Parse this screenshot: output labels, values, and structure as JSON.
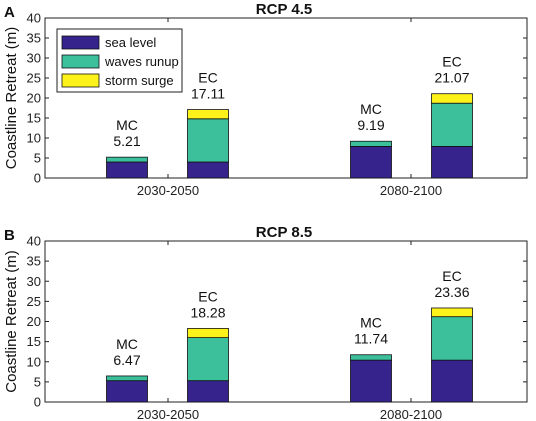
{
  "colors": {
    "sea_level": "#36248c",
    "waves_runup": "#3cbf9b",
    "storm_surge": "#fdf21a"
  },
  "chart_data": [
    {
      "type": "bar",
      "stacked": true,
      "panel_label": "A",
      "title": "RCP 4.5",
      "ylabel": "Coastline Retreat (m)",
      "ylim": [
        0,
        40
      ],
      "yticks": [
        "0",
        "5",
        "10",
        "15",
        "20",
        "25",
        "30",
        "35",
        "40"
      ],
      "groups": [
        "2030-2050",
        "2080-2100"
      ],
      "legend": {
        "placement": "top-left",
        "entries": [
          "sea level",
          "waves runup",
          "storm surge"
        ]
      },
      "bars": [
        {
          "group": "2030-2050",
          "label": "MC",
          "total_label": "5.21",
          "segments": [
            4.0,
            1.21,
            0
          ]
        },
        {
          "group": "2030-2050",
          "label": "EC",
          "total_label": "17.11",
          "segments": [
            4.0,
            10.8,
            2.31
          ]
        },
        {
          "group": "2080-2100",
          "label": "MC",
          "total_label": "9.19",
          "segments": [
            7.9,
            1.29,
            0
          ]
        },
        {
          "group": "2080-2100",
          "label": "EC",
          "total_label": "21.07",
          "segments": [
            7.9,
            10.8,
            2.37
          ]
        }
      ]
    },
    {
      "type": "bar",
      "stacked": true,
      "panel_label": "B",
      "title": "RCP 8.5",
      "ylabel": "Coastline Retreat (m)",
      "ylim": [
        0,
        40
      ],
      "yticks": [
        "0",
        "5",
        "10",
        "15",
        "20",
        "25",
        "30",
        "35",
        "40"
      ],
      "groups": [
        "2030-2050",
        "2080-2100"
      ],
      "bars": [
        {
          "group": "2030-2050",
          "label": "MC",
          "total_label": "6.47",
          "segments": [
            5.3,
            1.17,
            0
          ]
        },
        {
          "group": "2030-2050",
          "label": "EC",
          "total_label": "18.28",
          "segments": [
            5.3,
            10.7,
            2.28
          ]
        },
        {
          "group": "2080-2100",
          "label": "MC",
          "total_label": "11.74",
          "segments": [
            10.4,
            1.34,
            0
          ]
        },
        {
          "group": "2080-2100",
          "label": "EC",
          "total_label": "23.36",
          "segments": [
            10.4,
            10.8,
            2.16
          ]
        }
      ]
    }
  ]
}
